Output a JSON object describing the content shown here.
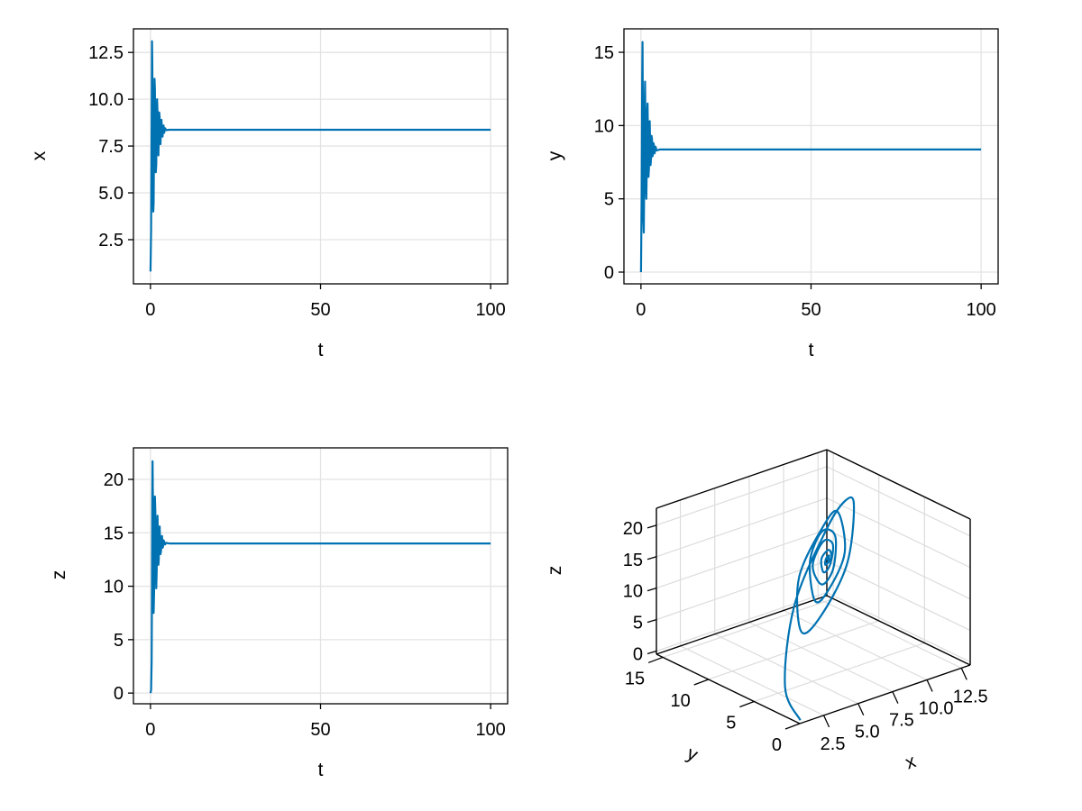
{
  "chart_data": [
    {
      "type": "line",
      "xlabel": "t",
      "ylabel": "x",
      "xlim": [
        -5,
        105
      ],
      "ylim": [
        0.14,
        13.76
      ],
      "xticks": [
        0,
        50,
        100
      ],
      "xtick_labels": [
        "0",
        "50",
        "100"
      ],
      "yticks": [
        2.5,
        5,
        7.5,
        10,
        12.5
      ],
      "ytick_labels": [
        "2.5",
        "5.0",
        "7.5",
        "10.0",
        "12.5"
      ],
      "grid": true,
      "var": "x"
    },
    {
      "type": "line",
      "xlabel": "t",
      "ylabel": "y",
      "xlim": [
        -5,
        105
      ],
      "ylim": [
        -0.8,
        16.6
      ],
      "xticks": [
        0,
        50,
        100
      ],
      "xtick_labels": [
        "0",
        "50",
        "100"
      ],
      "yticks": [
        0,
        5,
        10,
        15
      ],
      "ytick_labels": [
        "0",
        "5",
        "10",
        "15"
      ],
      "grid": true,
      "var": "y"
    },
    {
      "type": "line",
      "xlabel": "t",
      "ylabel": "z",
      "xlim": [
        -5,
        105
      ],
      "ylim": [
        -1.0,
        22.95
      ],
      "xticks": [
        0,
        50,
        100
      ],
      "xtick_labels": [
        "0",
        "50",
        "100"
      ],
      "yticks": [
        0,
        5,
        10,
        15,
        20
      ],
      "ytick_labels": [
        "0",
        "5",
        "10",
        "15",
        "20"
      ],
      "grid": true,
      "var": "z"
    },
    {
      "type": "line3d",
      "xlabel": "x",
      "ylabel": "y",
      "zlabel": "z",
      "xlim": [
        0.76,
        13.14
      ],
      "ylim": [
        0,
        15.7
      ],
      "zlim": [
        -0.5,
        22.7
      ],
      "xticks": [
        2.5,
        5,
        7.5,
        10,
        12.5
      ],
      "xtick_labels": [
        "2.5",
        "5.0",
        "7.5",
        "10.0",
        "12.5"
      ],
      "yticks": [
        0,
        5,
        10,
        15
      ],
      "ytick_labels": [
        "0",
        "5",
        "10",
        "15"
      ],
      "zticks": [
        0,
        5,
        10,
        15,
        20
      ],
      "ztick_labels": [
        "0",
        "5",
        "10",
        "15",
        "20"
      ],
      "grid": true
    }
  ],
  "trajectory": {
    "color": "#0072b2",
    "t": [
      0,
      0.2,
      0.35,
      0.45,
      0.55,
      0.62,
      0.72,
      0.82,
      0.95,
      1.08,
      1.2,
      1.32,
      1.45,
      1.58,
      1.7,
      1.83,
      1.95,
      2.08,
      2.2,
      2.33,
      2.45,
      2.58,
      2.7,
      2.83,
      2.95,
      3.1,
      3.25,
      3.4,
      3.55,
      3.7,
      3.85,
      4.0,
      4.3,
      4.6,
      5.5,
      100
    ],
    "x": [
      0.8,
      3.0,
      9.0,
      13.1,
      12.0,
      10.0,
      6.5,
      4.0,
      4.5,
      8.0,
      11.1,
      10.5,
      8.0,
      6.1,
      6.5,
      8.8,
      10.0,
      9.3,
      7.5,
      7.0,
      8.0,
      9.3,
      9.0,
      7.8,
      7.6,
      8.5,
      8.9,
      8.3,
      8.0,
      8.5,
      8.6,
      8.2,
      8.45,
      8.35,
      8.37,
      8.37
    ],
    "y": [
      0.0,
      5.0,
      13.0,
      15.7,
      12.0,
      8.0,
      3.5,
      2.7,
      5.5,
      11.0,
      13.0,
      10.5,
      6.0,
      5.0,
      7.0,
      11.0,
      11.5,
      9.0,
      6.5,
      7.0,
      9.5,
      10.3,
      8.8,
      7.3,
      7.7,
      9.3,
      9.1,
      7.9,
      8.1,
      8.8,
      8.6,
      8.1,
      8.55,
      8.3,
      8.37,
      8.37
    ],
    "z": [
      0.0,
      0.3,
      3.0,
      10.0,
      18.0,
      21.7,
      18.0,
      12.0,
      7.5,
      9.5,
      14.0,
      18.4,
      17.0,
      13.0,
      9.8,
      11.5,
      15.0,
      16.6,
      14.5,
      12.0,
      12.5,
      14.8,
      15.6,
      14.3,
      13.0,
      13.3,
      14.6,
      14.7,
      13.6,
      13.7,
      14.3,
      14.2,
      13.9,
      14.05,
      14.0,
      14.0
    ]
  }
}
